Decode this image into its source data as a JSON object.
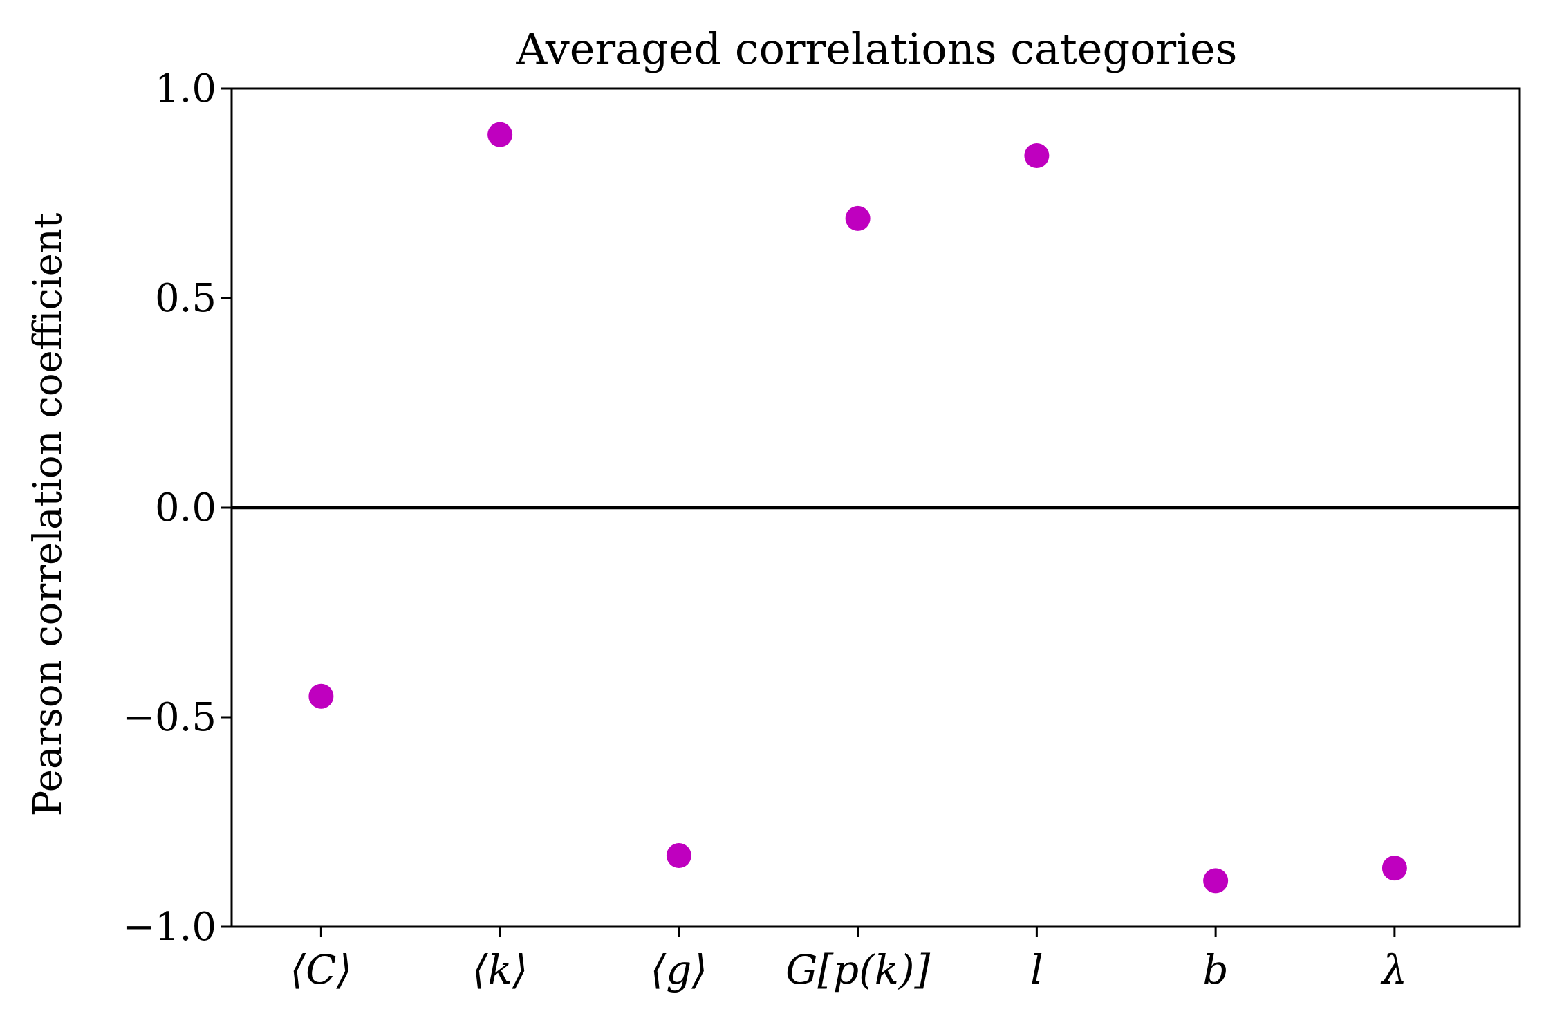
{
  "chart_data": {
    "type": "scatter",
    "title": "Averaged correlations categories",
    "xlabel": "",
    "ylabel": "Pearson correlation coefficient",
    "categories": [
      "⟨C⟩",
      "⟨k⟩",
      "⟨g⟩",
      "G[p(k)]",
      "l",
      "b",
      "λ"
    ],
    "values": [
      -0.45,
      0.89,
      -0.83,
      0.69,
      0.84,
      -0.89,
      -0.86
    ],
    "ylim": [
      -1.0,
      1.0
    ],
    "yticks": [
      -1.0,
      -0.5,
      0.0,
      0.5,
      1.0
    ],
    "ytick_labels": [
      "−1.0",
      "−0.5",
      "0.0",
      "0.5",
      "1.0"
    ],
    "reference_line_y": 0.0,
    "grid": false,
    "colors": {
      "marker": "#bf00bf",
      "axis": "#000000"
    }
  }
}
